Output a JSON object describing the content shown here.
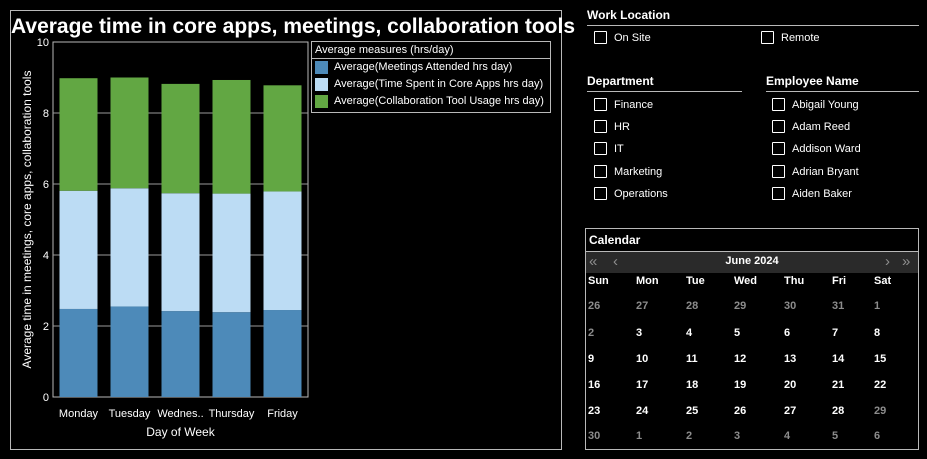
{
  "chart": {
    "title": "Average time in core apps, meetings, collaboration tools",
    "legend_title": "Average measures (hrs/day)",
    "chart_data": {
      "type": "bar",
      "stacked": true,
      "title": "Average time in core apps, meetings, collaboration tools",
      "xlabel": "Day of Week",
      "ylabel": "Average time in meetings, core apps, collaboration tools",
      "categories": [
        "Monday",
        "Tuesday",
        "Wednes..",
        "Thursday",
        "Friday"
      ],
      "ylim": [
        0,
        10
      ],
      "yticks": [
        0,
        2,
        4,
        6,
        8,
        10
      ],
      "grid": true,
      "legend_position": "top-right",
      "series": [
        {
          "name": "Average(Meetings Attended hrs day)",
          "color": "#4d8ab9",
          "values": [
            2.48,
            2.55,
            2.42,
            2.39,
            2.45
          ]
        },
        {
          "name": "Average(Time Spent in Core Apps hrs day)",
          "color": "#bcdcf4",
          "values": [
            3.33,
            3.33,
            3.32,
            3.34,
            3.34
          ]
        },
        {
          "name": "Average(Collaboration Tool Usage hrs day)",
          "color": "#62a743",
          "values": [
            3.17,
            3.12,
            3.08,
            3.2,
            2.99
          ]
        }
      ]
    }
  },
  "work_location": {
    "title": "Work Location",
    "options": [
      "On Site",
      "Remote"
    ]
  },
  "department": {
    "title": "Department",
    "options": [
      "Finance",
      "HR",
      "IT",
      "Marketing",
      "Operations"
    ]
  },
  "employee": {
    "title": "Employee Name",
    "options": [
      "Abigail Young",
      "Adam Reed",
      "Addison Ward",
      "Adrian Bryant",
      "Aiden Baker"
    ]
  },
  "calendar": {
    "title": "Calendar",
    "month": "June 2024",
    "prev_year": "«",
    "prev_month": "‹",
    "next_month": "›",
    "next_year": "»",
    "weekdays": [
      "Sun",
      "Mon",
      "Tue",
      "Wed",
      "Thu",
      "Fri",
      "Sat"
    ],
    "weeks": [
      [
        "26",
        "27",
        "28",
        "29",
        "30",
        "31",
        "1"
      ],
      [
        "2",
        "3",
        "4",
        "5",
        "6",
        "7",
        "8"
      ],
      [
        "9",
        "10",
        "11",
        "12",
        "13",
        "14",
        "15"
      ],
      [
        "16",
        "17",
        "18",
        "19",
        "20",
        "21",
        "22"
      ],
      [
        "23",
        "24",
        "25",
        "26",
        "27",
        "28",
        "29"
      ],
      [
        "30",
        "1",
        "2",
        "3",
        "4",
        "5",
        "6"
      ]
    ],
    "muted": [
      [
        true,
        true,
        true,
        true,
        true,
        true,
        true
      ],
      [
        true,
        false,
        false,
        false,
        false,
        false,
        false
      ],
      [
        false,
        false,
        false,
        false,
        false,
        false,
        false
      ],
      [
        false,
        false,
        false,
        false,
        false,
        false,
        false
      ],
      [
        false,
        false,
        false,
        false,
        false,
        false,
        true
      ],
      [
        true,
        true,
        true,
        true,
        true,
        true,
        true
      ]
    ]
  }
}
